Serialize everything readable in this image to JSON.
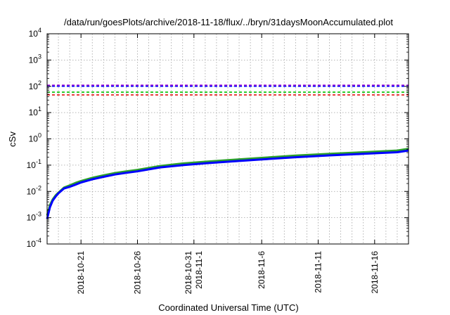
{
  "chart_data": {
    "type": "line",
    "title": "/data/run/goesPlots/archive/2018-11-18/flux/../bryn/31daysMoonAccumulated.plot",
    "xlabel": "Coordinated Universal Time (UTC)",
    "ylabel": "cSv",
    "y_scale": "log",
    "ylim": [
      0.0001,
      10000
    ],
    "xlim": [
      "2018-10-18",
      "2018-11-19"
    ],
    "grid": true,
    "y_ticks": [
      {
        "value": 0.0001,
        "base": "10",
        "exp": "-4"
      },
      {
        "value": 0.001,
        "base": "10",
        "exp": "-3"
      },
      {
        "value": 0.01,
        "base": "10",
        "exp": "-2"
      },
      {
        "value": 0.1,
        "base": "10",
        "exp": "-1"
      },
      {
        "value": 1,
        "base": "10",
        "exp": "0"
      },
      {
        "value": 10,
        "base": "10",
        "exp": "1"
      },
      {
        "value": 100,
        "base": "10",
        "exp": "2"
      },
      {
        "value": 1000,
        "base": "10",
        "exp": "3"
      },
      {
        "value": 10000,
        "base": "10",
        "exp": "4"
      }
    ],
    "x_ticks": [
      {
        "date": "2018-10-21",
        "lines": [
          "2018-10-21"
        ]
      },
      {
        "date": "2018-10-26",
        "lines": [
          "2018-10-26"
        ]
      },
      {
        "date": "2018-10-31",
        "lines": [
          "2018-10-31",
          "2018-11-1"
        ]
      },
      {
        "date": "2018-11-06",
        "lines": [
          "2018-11-6"
        ]
      },
      {
        "date": "2018-11-11",
        "lines": [
          "2018-11-11"
        ]
      },
      {
        "date": "2018-11-16",
        "lines": [
          "2018-11-16"
        ]
      }
    ],
    "reference_lines": [
      {
        "value": 110,
        "color": "#9400d3"
      },
      {
        "value": 100,
        "color": "#0000ff"
      },
      {
        "value": 60,
        "color": "#00c000"
      },
      {
        "value": 47,
        "color": "#e00000"
      }
    ],
    "series": [
      {
        "color": "#2ca02c",
        "x": [
          "2018-10-18",
          "2018-10-18T06:00",
          "2018-10-18T12:00",
          "2018-10-18T18:00",
          "2018-10-19",
          "2018-10-19T12:00",
          "2018-10-20",
          "2018-10-20T12:00",
          "2018-10-21",
          "2018-10-22",
          "2018-10-23",
          "2018-10-24",
          "2018-10-25",
          "2018-10-26",
          "2018-10-27",
          "2018-10-28",
          "2018-10-30",
          "2018-11-01",
          "2018-11-03",
          "2018-11-06",
          "2018-11-09",
          "2018-11-12",
          "2018-11-15",
          "2018-11-18",
          "2018-11-19"
        ],
        "values": [
          0.0012,
          0.003,
          0.005,
          0.007,
          0.009,
          0.014,
          0.017,
          0.021,
          0.025,
          0.033,
          0.041,
          0.05,
          0.058,
          0.066,
          0.078,
          0.093,
          0.116,
          0.135,
          0.156,
          0.19,
          0.232,
          0.27,
          0.31,
          0.36,
          0.42
        ]
      },
      {
        "color": "#0000ff",
        "x": [
          "2018-10-18",
          "2018-10-18T06:00",
          "2018-10-18T12:00",
          "2018-10-18T18:00",
          "2018-10-19",
          "2018-10-19T12:00",
          "2018-10-20",
          "2018-10-20T12:00",
          "2018-10-21",
          "2018-10-22",
          "2018-10-23",
          "2018-10-24",
          "2018-10-25",
          "2018-10-26",
          "2018-10-27",
          "2018-10-28",
          "2018-10-30",
          "2018-11-01",
          "2018-11-03",
          "2018-11-06",
          "2018-11-09",
          "2018-11-12",
          "2018-11-15",
          "2018-11-18",
          "2018-11-19"
        ],
        "values": [
          0.0009,
          0.0025,
          0.0045,
          0.0063,
          0.0085,
          0.013,
          0.015,
          0.018,
          0.022,
          0.029,
          0.036,
          0.044,
          0.051,
          0.058,
          0.069,
          0.082,
          0.1,
          0.117,
          0.135,
          0.165,
          0.2,
          0.235,
          0.27,
          0.31,
          0.36
        ]
      }
    ]
  }
}
